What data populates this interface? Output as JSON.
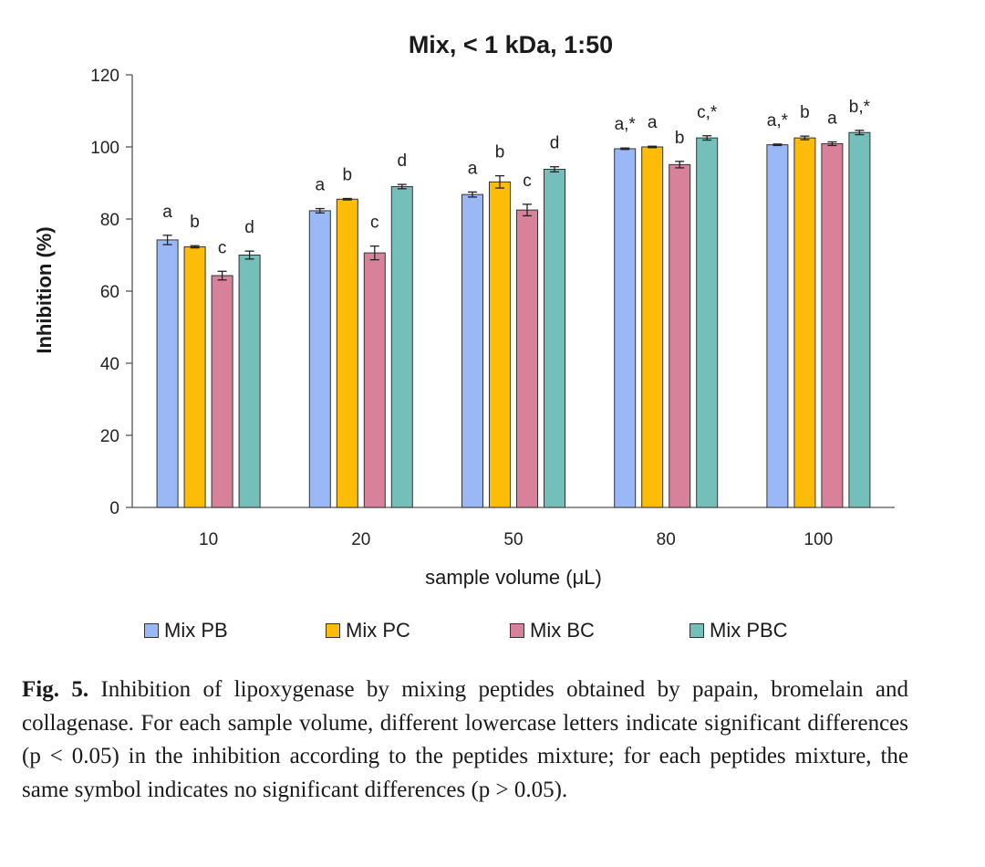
{
  "chart_data": {
    "type": "bar",
    "title": "Mix, < 1 kDa, 1:50",
    "xlabel": "sample volume (μL)",
    "ylabel": "Inhibition (%)",
    "ylim": [
      0,
      120
    ],
    "yticks": [
      0,
      20,
      40,
      60,
      80,
      100,
      120
    ],
    "categories": [
      "10",
      "20",
      "50",
      "80",
      "100"
    ],
    "series": [
      {
        "name": "Mix PB",
        "color": "#99b8f5",
        "values": [
          74.2,
          82.3,
          86.8,
          99.5,
          100.6
        ],
        "errors": [
          1.3,
          0.6,
          0.7,
          0.2,
          0.2
        ],
        "labels": [
          "a",
          "a",
          "a",
          "a,*",
          "a,*"
        ]
      },
      {
        "name": "Mix PC",
        "color": "#fcbc07",
        "values": [
          72.3,
          85.5,
          90.3,
          100.0,
          102.5
        ],
        "errors": [
          0.3,
          0.2,
          1.7,
          0.2,
          0.5
        ],
        "labels": [
          "b",
          "b",
          "b",
          "a",
          "b"
        ]
      },
      {
        "name": "Mix BC",
        "color": "#d7819a",
        "values": [
          64.3,
          70.6,
          82.5,
          95.1,
          100.9
        ],
        "errors": [
          1.2,
          1.9,
          1.6,
          0.9,
          0.5
        ],
        "labels": [
          "c",
          "c",
          "c",
          "b",
          "a"
        ]
      },
      {
        "name": "Mix PBC",
        "color": "#74bfb9",
        "values": [
          70.0,
          89.0,
          93.8,
          102.5,
          104.0
        ],
        "errors": [
          1.1,
          0.6,
          0.7,
          0.6,
          0.6
        ],
        "labels": [
          "d",
          "d",
          "d",
          "c,*",
          "b,*"
        ]
      }
    ],
    "legend_position": "bottom"
  },
  "caption": {
    "label": "Fig. 5.",
    "text": "Inhibition of lipoxygenase by mixing peptides obtained by papain, bromelain and collagenase. For each sample volume, different lowercase letters indicate significant differences (p < 0.05) in the inhibition according to the peptides mixture; for each peptides mixture, the same symbol indicates no significant differences (p > 0.05)."
  }
}
